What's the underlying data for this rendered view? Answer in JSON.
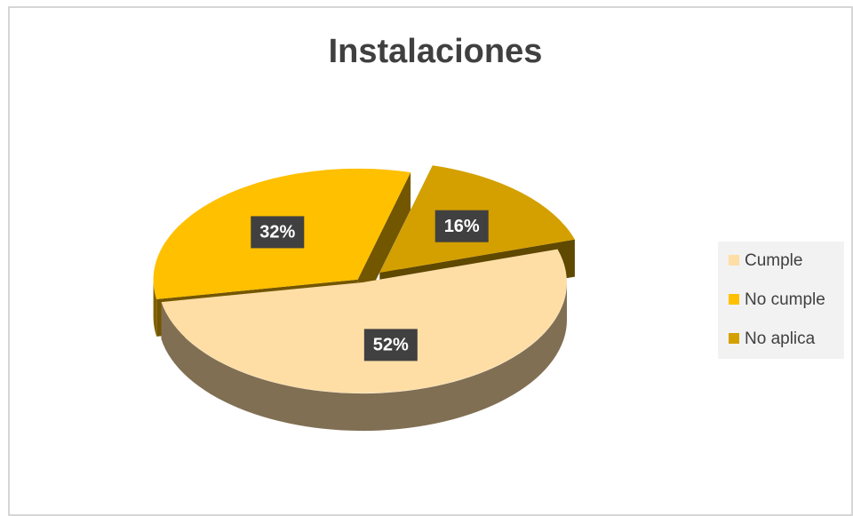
{
  "chart_data": {
    "type": "pie",
    "title": "Instalaciones",
    "categories": [
      "Cumple",
      "No cumple",
      "No aplica"
    ],
    "values": [
      52,
      32,
      16
    ],
    "value_labels": [
      "52%",
      "32%",
      "16%"
    ],
    "colors": [
      "#ffdea6",
      "#ffc000",
      "#d4a000"
    ],
    "legend": "right"
  }
}
